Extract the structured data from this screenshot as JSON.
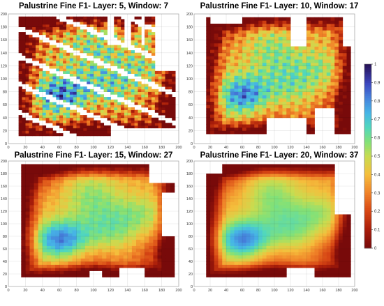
{
  "colors": {
    "colormap": "jet",
    "nodata": "#ffffff"
  },
  "chart_data": [
    {
      "type": "heatmap",
      "title": "Palustrine Fine F1- Layer: 5, Window: 7",
      "xlim": [
        0,
        200
      ],
      "ylim": [
        0,
        200
      ],
      "xticks": [
        "0",
        "20",
        "40",
        "60",
        "80",
        "100",
        "120",
        "140",
        "160",
        "180",
        "200"
      ],
      "yticks": [
        "0",
        "20",
        "40",
        "60",
        "80",
        "100",
        "120",
        "140",
        "160",
        "180",
        "200"
      ],
      "grid": true,
      "layer": 5,
      "window": 7,
      "color_range": [
        0,
        1
      ],
      "pattern": "noisy diagonal bands, many gaps"
    },
    {
      "type": "heatmap",
      "title": "Palustrine Fine F1- Layer: 10, Window: 17",
      "xlim": [
        0,
        200
      ],
      "ylim": [
        0,
        200
      ],
      "xticks": [
        "0",
        "20",
        "40",
        "60",
        "80",
        "100",
        "120",
        "140",
        "160",
        "180",
        "200"
      ],
      "yticks": [
        "0",
        "20",
        "40",
        "60",
        "80",
        "100",
        "120",
        "140",
        "160",
        "180",
        "200"
      ],
      "grid": true,
      "layer": 10,
      "window": 17,
      "color_range": [
        0,
        1
      ],
      "pattern": "high values around (60,80), low values along edges"
    },
    {
      "type": "heatmap",
      "title": "Palustrine Fine F1- Layer: 15, Window: 27",
      "xlim": [
        0,
        200
      ],
      "ylim": [
        0,
        200
      ],
      "xticks": [
        "0",
        "20",
        "40",
        "60",
        "80",
        "100",
        "120",
        "140",
        "160",
        "180",
        "200"
      ],
      "yticks": [
        "0",
        "20",
        "40",
        "60",
        "80",
        "100",
        "120",
        "140",
        "160",
        "180",
        "200"
      ],
      "grid": true,
      "layer": 15,
      "window": 27,
      "color_range": [
        0,
        1
      ],
      "pattern": "smooth, peak near (60,70)"
    },
    {
      "type": "heatmap",
      "title": "Palustrine Fine F1- Layer: 20, Window: 37",
      "xlim": [
        0,
        200
      ],
      "ylim": [
        0,
        200
      ],
      "xticks": [
        "0",
        "20",
        "40",
        "60",
        "80",
        "100",
        "120",
        "140",
        "160",
        "180",
        "200"
      ],
      "yticks": [
        "0",
        "20",
        "40",
        "60",
        "80",
        "100",
        "120",
        "140",
        "160",
        "180",
        "200"
      ],
      "grid": true,
      "layer": 20,
      "window": 37,
      "color_range": [
        0,
        1
      ],
      "pattern": "smoothest, peak near (60,75)"
    }
  ],
  "colorbar": {
    "ticks": [
      "0",
      "0.1",
      "0.2",
      "0.3",
      "0.4",
      "0.5",
      "0.6",
      "0.7",
      "0.8",
      "0.9",
      "1"
    ],
    "min": 0,
    "max": 1
  }
}
